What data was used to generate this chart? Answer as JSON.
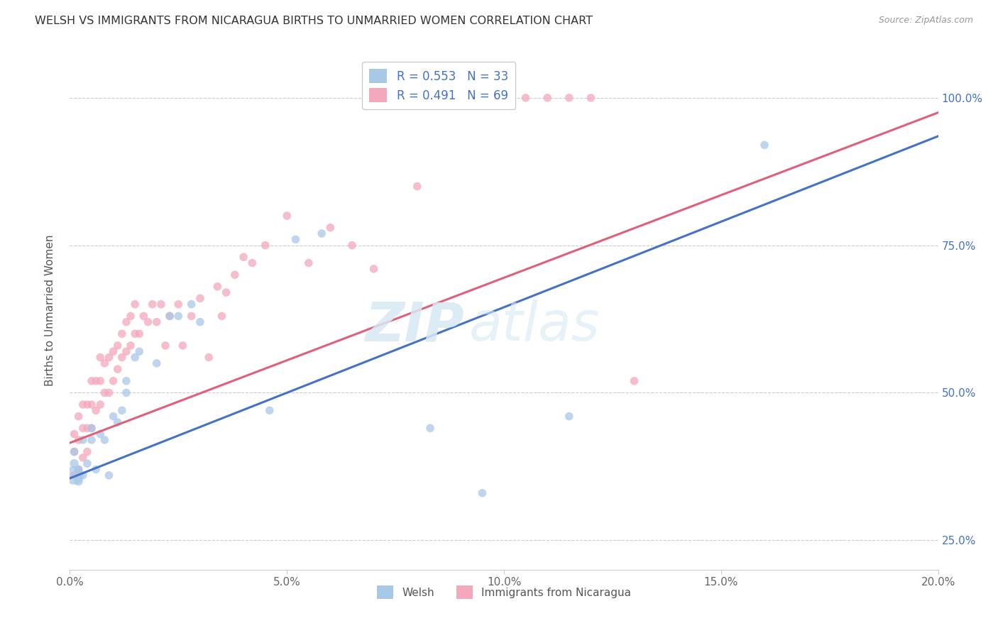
{
  "title": "WELSH VS IMMIGRANTS FROM NICARAGUA BIRTHS TO UNMARRIED WOMEN CORRELATION CHART",
  "source": "Source: ZipAtlas.com",
  "ylabel": "Births to Unmarried Women",
  "xlim": [
    0.0,
    0.2
  ],
  "ylim": [
    0.2,
    1.08
  ],
  "xtick_labels": [
    "0.0%",
    "5.0%",
    "10.0%",
    "15.0%",
    "20.0%"
  ],
  "xtick_vals": [
    0.0,
    0.05,
    0.1,
    0.15,
    0.2
  ],
  "ytick_labels": [
    "25.0%",
    "50.0%",
    "75.0%",
    "100.0%"
  ],
  "ytick_vals": [
    0.25,
    0.5,
    0.75,
    1.0
  ],
  "legend_r_welsh": "0.553",
  "legend_n_welsh": "33",
  "legend_r_nicaragua": "0.491",
  "legend_n_nicaragua": "69",
  "welsh_color": "#a8c8e8",
  "nicaragua_color": "#f4a8bc",
  "trendline_welsh_color": "#4472c4",
  "trendline_nicaragua_color": "#e0607a",
  "watermark_zip": "ZIP",
  "watermark_atlas": "atlas",
  "welsh_x": [
    0.001,
    0.001,
    0.001,
    0.002,
    0.002,
    0.003,
    0.003,
    0.004,
    0.005,
    0.005,
    0.006,
    0.007,
    0.008,
    0.009,
    0.01,
    0.011,
    0.012,
    0.013,
    0.013,
    0.015,
    0.016,
    0.02,
    0.023,
    0.025,
    0.028,
    0.03,
    0.046,
    0.052,
    0.058,
    0.083,
    0.095,
    0.115,
    0.16
  ],
  "welsh_y": [
    0.36,
    0.38,
    0.4,
    0.35,
    0.37,
    0.36,
    0.42,
    0.38,
    0.44,
    0.42,
    0.37,
    0.43,
    0.42,
    0.36,
    0.46,
    0.45,
    0.47,
    0.5,
    0.52,
    0.56,
    0.57,
    0.55,
    0.63,
    0.63,
    0.65,
    0.62,
    0.47,
    0.76,
    0.77,
    0.44,
    0.33,
    0.46,
    0.92
  ],
  "welsh_size": [
    350,
    80,
    70,
    80,
    70,
    70,
    70,
    70,
    70,
    70,
    70,
    70,
    70,
    70,
    70,
    70,
    70,
    70,
    70,
    70,
    70,
    70,
    70,
    70,
    70,
    70,
    70,
    70,
    70,
    70,
    70,
    70,
    70
  ],
  "nicaragua_x": [
    0.001,
    0.001,
    0.001,
    0.002,
    0.002,
    0.002,
    0.003,
    0.003,
    0.003,
    0.004,
    0.004,
    0.004,
    0.005,
    0.005,
    0.005,
    0.006,
    0.006,
    0.007,
    0.007,
    0.007,
    0.008,
    0.008,
    0.009,
    0.009,
    0.01,
    0.01,
    0.011,
    0.011,
    0.012,
    0.012,
    0.013,
    0.013,
    0.014,
    0.014,
    0.015,
    0.015,
    0.016,
    0.017,
    0.018,
    0.019,
    0.02,
    0.021,
    0.022,
    0.023,
    0.025,
    0.026,
    0.028,
    0.03,
    0.032,
    0.034,
    0.035,
    0.036,
    0.038,
    0.04,
    0.042,
    0.045,
    0.05,
    0.055,
    0.06,
    0.065,
    0.07,
    0.08,
    0.095,
    0.1,
    0.105,
    0.11,
    0.115,
    0.12,
    0.13
  ],
  "nicaragua_y": [
    0.36,
    0.4,
    0.43,
    0.37,
    0.42,
    0.46,
    0.39,
    0.44,
    0.48,
    0.4,
    0.44,
    0.48,
    0.44,
    0.48,
    0.52,
    0.47,
    0.52,
    0.48,
    0.52,
    0.56,
    0.5,
    0.55,
    0.5,
    0.56,
    0.52,
    0.57,
    0.54,
    0.58,
    0.56,
    0.6,
    0.57,
    0.62,
    0.58,
    0.63,
    0.6,
    0.65,
    0.6,
    0.63,
    0.62,
    0.65,
    0.62,
    0.65,
    0.58,
    0.63,
    0.65,
    0.58,
    0.63,
    0.66,
    0.56,
    0.68,
    0.63,
    0.67,
    0.7,
    0.73,
    0.72,
    0.75,
    0.8,
    0.72,
    0.78,
    0.75,
    0.71,
    0.85,
    1.0,
    1.0,
    1.0,
    1.0,
    1.0,
    1.0,
    0.52
  ],
  "trendline_welsh_x0": 0.0,
  "trendline_welsh_y0": 0.355,
  "trendline_welsh_x1": 0.2,
  "trendline_welsh_y1": 0.935,
  "trendline_nic_x0": 0.0,
  "trendline_nic_y0": 0.415,
  "trendline_nic_x1": 0.2,
  "trendline_nic_y1": 0.975
}
